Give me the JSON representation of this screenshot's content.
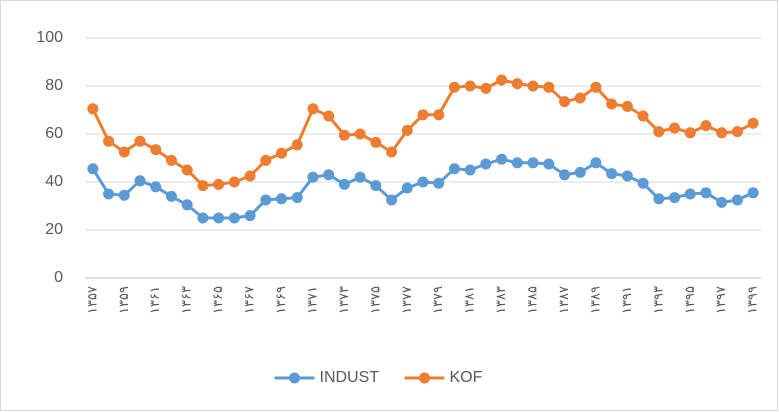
{
  "chart_data": {
    "type": "line",
    "categories": [
      "۱۳۵۷",
      null,
      "۱۳۵۹",
      null,
      "۱۳۶۱",
      null,
      "۱۳۶۳",
      null,
      "۱۳۶۵",
      null,
      "۱۳۶۷",
      null,
      "۱۳۶۹",
      null,
      "۱۳۷۱",
      null,
      "۱۳۷۳",
      null,
      "۱۳۷۵",
      null,
      "۱۳۷۷",
      null,
      "۱۳۷۹",
      null,
      "۱۳۸۱",
      null,
      "۱۳۸۳",
      null,
      "۱۳۸۵",
      null,
      "۱۳۸۷",
      null,
      "۱۳۸۹",
      null,
      "۱۳۹۱",
      null,
      "۱۳۹۳",
      null,
      "۱۳۹۵",
      null,
      "۱۳۹۷",
      null,
      "۱۳۹۹"
    ],
    "series": [
      {
        "name": "INDUST",
        "color": "#5b9bd5",
        "values": [
          45.5,
          35,
          34.5,
          40.5,
          38,
          34,
          30.5,
          25,
          25,
          25,
          26,
          32.5,
          33,
          33.5,
          42,
          43,
          39,
          42,
          38.5,
          32.5,
          37.5,
          40,
          39.5,
          45.5,
          45,
          47.5,
          49.5,
          48,
          48,
          47.5,
          43,
          44,
          48,
          43.5,
          42.5,
          39.5,
          33,
          33.5,
          35,
          35.5,
          31.5,
          32.5,
          35.5
        ]
      },
      {
        "name": "KOF",
        "color": "#ed7d31",
        "values": [
          70.5,
          57,
          52.5,
          57,
          53.5,
          49,
          45,
          38.5,
          39,
          40,
          42.5,
          49,
          52,
          55.5,
          70.5,
          67.5,
          59.5,
          60,
          56.5,
          52.5,
          61.5,
          68,
          68,
          79.5,
          80,
          79,
          82.5,
          81,
          80,
          79.5,
          73.5,
          75,
          79.5,
          72.5,
          71.5,
          67.5,
          61,
          62.5,
          60.5,
          63.5,
          60.5,
          61,
          64.5
        ]
      }
    ],
    "ylim": [
      0,
      100
    ],
    "yticks": [
      0,
      20,
      40,
      60,
      80,
      100
    ],
    "grid": true,
    "legend": "bottom"
  }
}
